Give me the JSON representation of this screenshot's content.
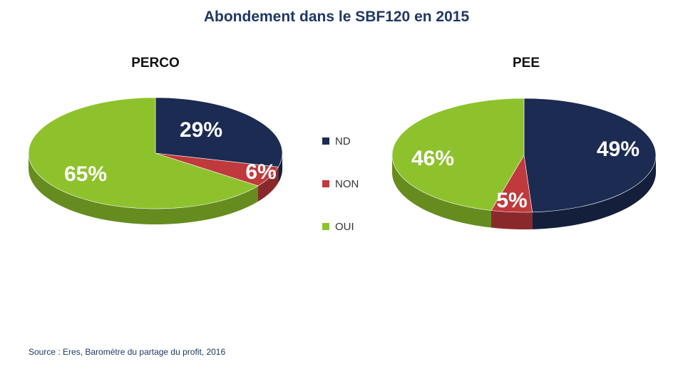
{
  "title": "Abondement dans le SBF120 en 2015",
  "source": "Source : Eres, Baromètre du partage du profit, 2016",
  "colors": {
    "ND": "#1b2b52",
    "NON": "#c0393c",
    "OUI": "#8ec22c"
  },
  "legend": [
    {
      "label": "ND",
      "key": "ND"
    },
    {
      "label": "NON",
      "key": "NON"
    },
    {
      "label": "OUI",
      "key": "OUI"
    }
  ],
  "chart_data": [
    {
      "type": "pie",
      "title": "PERCO",
      "slices": [
        {
          "label": "ND",
          "value": 29,
          "display": "29%"
        },
        {
          "label": "NON",
          "value": 6,
          "display": "6%"
        },
        {
          "label": "OUI",
          "value": 65,
          "display": "65%"
        }
      ]
    },
    {
      "type": "pie",
      "title": "PEE",
      "slices": [
        {
          "label": "ND",
          "value": 49,
          "display": "49%"
        },
        {
          "label": "NON",
          "value": 5,
          "display": "5%"
        },
        {
          "label": "OUI",
          "value": 46,
          "display": "46%"
        }
      ]
    }
  ]
}
